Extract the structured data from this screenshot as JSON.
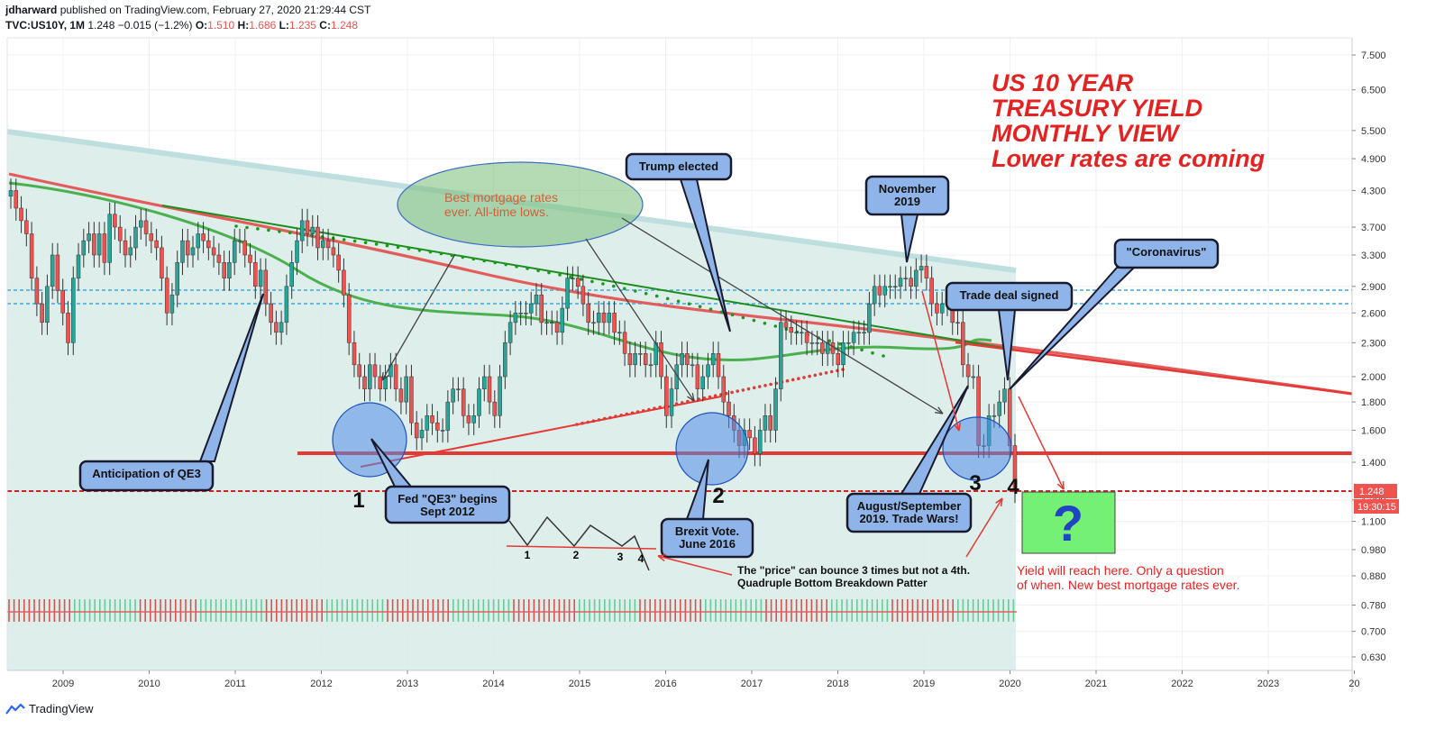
{
  "header": {
    "publisher": "jdharward",
    "published_text": "published on TradingView.com, February 27, 2020 21:29:44 CST",
    "symbol": "TVC:US10Y, 1M",
    "last": "1.248",
    "change": "−0.015 (−1.2%)",
    "o_label": "O:",
    "o_value": "1.510",
    "h_label": "H:",
    "h_value": "1.686",
    "l_label": "L:",
    "l_value": "1.235",
    "c_label": "C:",
    "c_value": "1.248"
  },
  "footer": {
    "brand": "TradingView"
  },
  "colors": {
    "up": "#26a69a",
    "down": "#ef5350",
    "ma_red": "#e25c5c",
    "ma_green": "#4caf50",
    "trend_green": "#1e8c1e",
    "dots_green": "#1a9a1a",
    "support": "#e53935",
    "annot_red": "#e52222",
    "callout_fill": "#8fb4ea",
    "callout_stroke": "#1a1a2e",
    "zone": "#d7ebe8",
    "channel": "#b8dcdc",
    "price_tag": "#ef5350"
  },
  "chart_data": {
    "type": "candlestick",
    "title": "",
    "y_scale": "log",
    "x_ticks": [
      "2009",
      "2010",
      "2011",
      "2012",
      "2013",
      "2014",
      "2015",
      "2016",
      "2017",
      "2018",
      "2019",
      "2020",
      "2021",
      "2022",
      "2023",
      "20"
    ],
    "y_ticks": [
      "7.500",
      "6.500",
      "5.500",
      "4.900",
      "4.300",
      "3.700",
      "3.300",
      "2.900",
      "2.600",
      "2.300",
      "2.000",
      "1.800",
      "1.600",
      "1.400",
      "1.200",
      "1.100",
      "0.980",
      "0.880",
      "0.780",
      "0.700",
      "0.630"
    ],
    "ylim": [
      0.58,
      8.0
    ],
    "last_price": {
      "value": "1.248",
      "countdown": "19:30:15"
    },
    "closes": [
      4.3,
      4.0,
      3.8,
      3.6,
      3.0,
      2.7,
      2.5,
      2.9,
      3.3,
      2.85,
      2.6,
      2.3,
      3.0,
      3.3,
      3.5,
      3.6,
      3.3,
      3.6,
      3.2,
      3.9,
      3.7,
      3.5,
      3.3,
      3.4,
      3.7,
      3.8,
      3.6,
      3.5,
      3.4,
      3.0,
      2.6,
      2.8,
      3.2,
      3.5,
      3.3,
      3.4,
      3.6,
      3.5,
      3.4,
      3.3,
      3.2,
      3.0,
      3.2,
      3.5,
      3.5,
      3.3,
      3.2,
      2.9,
      3.1,
      2.7,
      2.5,
      2.4,
      2.5,
      2.9,
      3.2,
      3.5,
      3.8,
      3.6,
      3.7,
      3.4,
      3.5,
      3.4,
      3.3,
      3.1,
      2.8,
      2.3,
      2.1,
      2.0,
      1.9,
      2.1,
      2.0,
      1.9,
      2.0,
      2.1,
      1.9,
      1.8,
      2.0,
      1.65,
      1.55,
      1.6,
      1.7,
      1.65,
      1.6,
      1.6,
      1.8,
      1.9,
      1.9,
      1.7,
      1.65,
      1.7,
      1.9,
      2.0,
      1.8,
      1.7,
      2.0,
      2.3,
      2.5,
      2.6,
      2.6,
      2.6,
      2.7,
      2.8,
      2.5,
      2.5,
      2.5,
      2.4,
      2.65,
      3.0,
      3.0,
      2.9,
      2.7,
      2.5,
      2.5,
      2.6,
      2.5,
      2.6,
      2.4,
      2.4,
      2.2,
      2.1,
      2.2,
      2.2,
      2.1,
      2.1,
      2.3,
      2.0,
      1.7,
      1.9,
      2.1,
      2.2,
      2.1,
      2.1,
      1.9,
      2.0,
      2.1,
      2.2,
      2.0,
      1.8,
      1.7,
      1.6,
      1.5,
      1.6,
      1.55,
      1.45,
      1.6,
      1.7,
      1.6,
      1.9,
      2.5,
      2.45,
      2.4,
      2.4,
      2.4,
      2.3,
      2.3,
      2.3,
      2.2,
      2.3,
      2.2,
      2.1,
      2.3,
      2.3,
      2.4,
      2.4,
      2.4,
      2.7,
      2.9,
      2.8,
      2.9,
      2.9,
      2.9,
      3.0,
      3.0,
      2.9,
      3.1,
      3.15,
      3.0,
      2.7,
      2.6,
      2.7,
      2.75,
      2.5,
      2.5,
      2.1,
      2.0,
      2.0,
      1.5,
      1.5,
      1.7,
      1.7,
      1.8,
      1.9,
      1.5,
      1.248
    ]
  },
  "annotations": {
    "title_lines": [
      "US 10 YEAR",
      "TREASURY YIELD",
      "MONTHLY VIEW",
      "Lower rates are coming"
    ],
    "best_rates": [
      "Best mortgage rates",
      "ever. All-time lows."
    ],
    "trump": "Trump elected",
    "november": [
      "November",
      "2019"
    ],
    "coronavirus": "\"Coronavirus\"",
    "trade_deal": "Trade deal signed",
    "qe3_anticipation": "Anticipation of QE3",
    "qe3_begins": [
      "Fed \"QE3\" begins",
      "Sept 2012"
    ],
    "brexit": [
      "Brexit Vote.",
      "June 2016"
    ],
    "trade_wars": [
      "August/September",
      "2019. Trade Wars!"
    ],
    "bottom_1": "1",
    "bottom_2": "2",
    "bottom_3": "3",
    "bottom_4": "4",
    "pattern_labels": [
      "1",
      "2",
      "3",
      "4"
    ],
    "pattern_note": [
      "The \"price\" can bounce 3 times but not a 4th.",
      "Quadruple Bottom Breakdown Patter"
    ],
    "target_note": [
      "Yield will reach here. Only a question",
      "of when. New best mortgage rates ever."
    ],
    "question": "?"
  }
}
